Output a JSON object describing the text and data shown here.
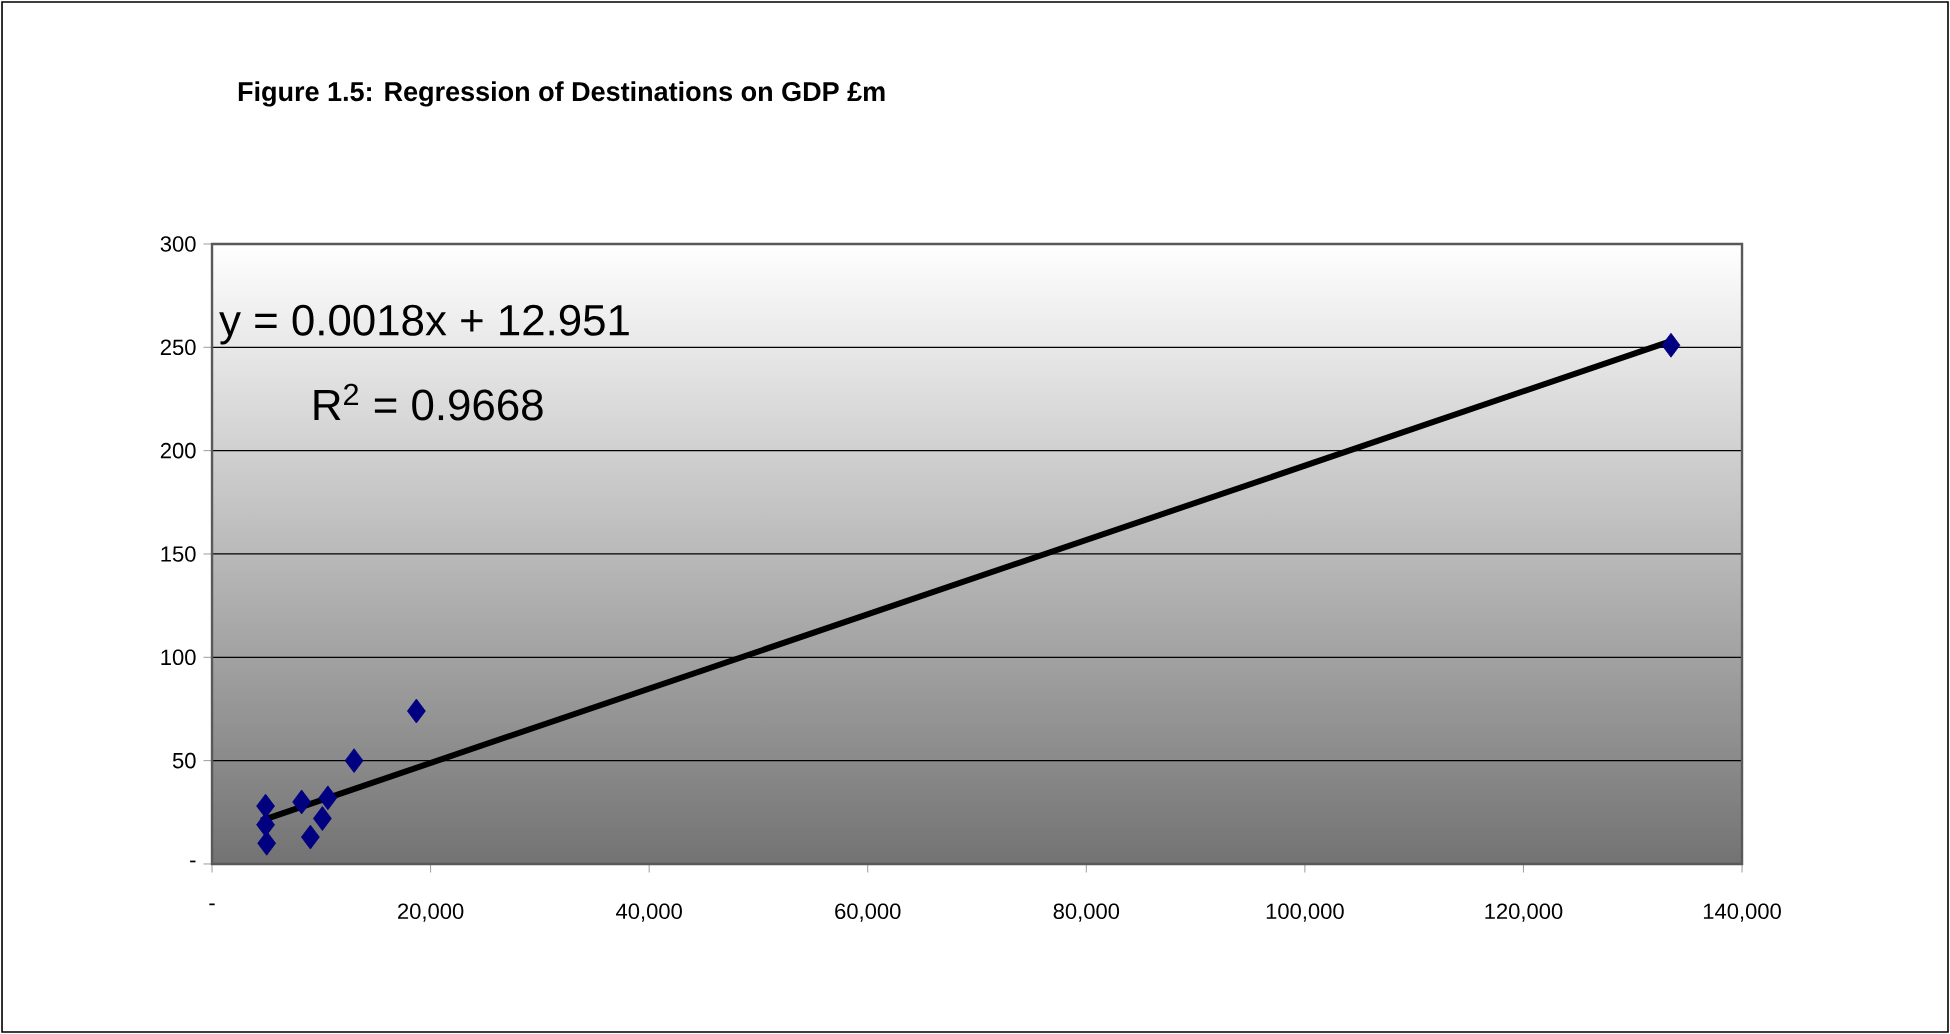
{
  "chart_data": {
    "type": "scatter",
    "title": "Figure 1.5: Regression of Destinations on GDP £m",
    "series": [
      {
        "color": "#000080",
        "marker": "diamond",
        "x": [
          4900,
          4900,
          5000,
          8200,
          10600,
          10100,
          9000,
          13000,
          18700,
          133500
        ],
        "values": [
          28,
          19,
          10,
          30,
          32,
          22,
          13,
          50,
          74,
          251
        ]
      },
      {
        "type": "line",
        "color": "#000000",
        "marker": "none",
        "line_style": "solid",
        "x": [
          4500,
          133500
        ],
        "values": [
          21,
          253
        ]
      }
    ],
    "xlim": [
      0,
      140000
    ],
    "ylim": [
      0,
      300
    ],
    "xticks": [
      {
        "value": 0,
        "label": "-"
      },
      {
        "value": 20000,
        "label": "20,000"
      },
      {
        "value": 40000,
        "label": "40,000"
      },
      {
        "value": 60000,
        "label": "60,000"
      },
      {
        "value": 80000,
        "label": "80,000"
      },
      {
        "value": 100000,
        "label": "100,000"
      },
      {
        "value": 120000,
        "label": "120,000"
      },
      {
        "value": 140000,
        "label": "140,000"
      }
    ],
    "yticks": [
      {
        "value": 0,
        "label": "-"
      },
      50,
      100,
      150,
      200,
      250,
      300
    ],
    "grid": "y",
    "annotations": [
      "y = 0.0018x + 12.951",
      "R$^{2}$ = 0.9668"
    ]
  }
}
